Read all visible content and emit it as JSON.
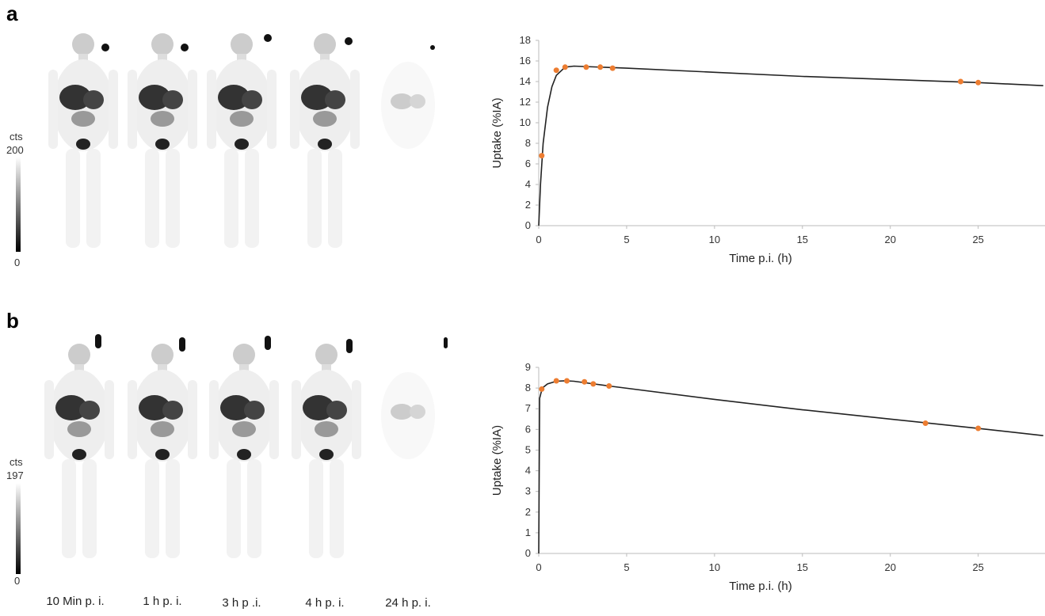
{
  "panel_labels": [
    "a",
    "b"
  ],
  "colorbars": [
    {
      "label": "cts",
      "max": 200,
      "min": 0
    },
    {
      "label": "cts",
      "max": 197,
      "min": 0
    }
  ],
  "time_labels": [
    "10 Min p. i.",
    "1 h p. i.",
    "3 h p .i.",
    "4 h p. i.",
    "24 h p. i."
  ],
  "chart_data": [
    {
      "type": "scatter",
      "x_label": "Time p.i. (h)",
      "y_label": "Uptake (%IA)",
      "xlim": [
        0,
        28.8
      ],
      "ylim": [
        0,
        18
      ],
      "xticks": [
        0,
        5,
        10,
        15,
        20,
        25
      ],
      "yticks": [
        0,
        2,
        4,
        6,
        8,
        10,
        12,
        14,
        16,
        18
      ],
      "series": [
        {
          "kind": "points",
          "color": "#ed7d31",
          "x": [
            0.17,
            1,
            1.5,
            2.7,
            3.5,
            4.2,
            24,
            25
          ],
          "values": [
            6.8,
            15.1,
            15.4,
            15.4,
            15.4,
            15.3,
            14.0,
            13.9
          ]
        },
        {
          "kind": "line",
          "color": "#222222",
          "x": [
            0,
            0.1,
            0.25,
            0.5,
            0.75,
            1,
            1.5,
            2,
            5,
            10,
            15,
            20,
            25,
            28.7
          ],
          "values": [
            0,
            4,
            8,
            11.5,
            13.5,
            14.6,
            15.4,
            15.5,
            15.3,
            14.9,
            14.5,
            14.2,
            13.9,
            13.6
          ]
        }
      ]
    },
    {
      "type": "scatter",
      "x_label": "Time p.i. (h)",
      "y_label": "Uptake (%IA)",
      "xlim": [
        0,
        28.8
      ],
      "ylim": [
        0,
        9
      ],
      "xticks": [
        0,
        5,
        10,
        15,
        20,
        25
      ],
      "yticks": [
        0,
        1,
        2,
        3,
        4,
        5,
        6,
        7,
        8,
        9
      ],
      "series": [
        {
          "kind": "points",
          "color": "#ed7d31",
          "x": [
            0.17,
            1,
            1.6,
            2.6,
            3.1,
            4,
            22,
            25
          ],
          "values": [
            7.95,
            8.35,
            8.35,
            8.3,
            8.2,
            8.1,
            6.3,
            6.05
          ]
        },
        {
          "kind": "line",
          "color": "#222222",
          "x": [
            0,
            0.05,
            0.2,
            0.5,
            1,
            1.5,
            2,
            4,
            10,
            15,
            20,
            25,
            28.7
          ],
          "values": [
            0,
            7.5,
            8.0,
            8.2,
            8.33,
            8.35,
            8.33,
            8.1,
            7.45,
            6.95,
            6.5,
            6.05,
            5.7
          ]
        }
      ]
    }
  ]
}
